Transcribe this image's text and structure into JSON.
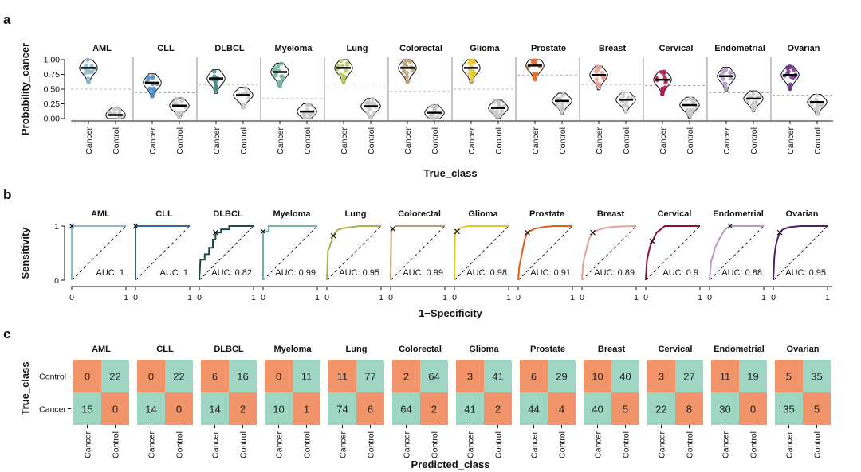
{
  "chart_data": [
    {
      "type": "violin",
      "panel": "a",
      "ylabel": "Probability_cancer",
      "xlabel": "True_class",
      "ylim": [
        0,
        1
      ],
      "yticks": [
        "0.00",
        "0.25",
        "0.50",
        "0.75",
        "1.00"
      ],
      "x_categories": [
        "Cancer",
        "Control"
      ],
      "colors": {
        "AML": "#8ab8d4",
        "CLL": "#4f8ec4",
        "DLBCL": "#4a8a86",
        "Myeloma": "#6fb89c",
        "Lung": "#b6c95c",
        "Colorectal": "#b79e72",
        "Glioma": "#e7c62a",
        "Prostate": "#e27136",
        "Breast": "#e5a29b",
        "Cervical": "#b0164f",
        "Endometrial": "#b49bc2",
        "Ovarian": "#6f338e",
        "control": "#c8c8c8"
      },
      "panels": [
        {
          "name": "AML",
          "cancer_median": 0.86,
          "control_median": 0.06,
          "threshold": 0.5
        },
        {
          "name": "CLL",
          "cancer_median": 0.61,
          "control_median": 0.22,
          "threshold": 0.44
        },
        {
          "name": "DLBCL",
          "cancer_median": 0.68,
          "control_median": 0.4,
          "threshold": 0.58
        },
        {
          "name": "Myeloma",
          "cancer_median": 0.79,
          "control_median": 0.12,
          "threshold": 0.34
        },
        {
          "name": "Lung",
          "cancer_median": 0.86,
          "control_median": 0.21,
          "threshold": 0.52
        },
        {
          "name": "Colorectal",
          "cancer_median": 0.86,
          "control_median": 0.1,
          "threshold": 0.46
        },
        {
          "name": "Glioma",
          "cancer_median": 0.86,
          "control_median": 0.18,
          "threshold": 0.5
        },
        {
          "name": "Prostate",
          "cancer_median": 0.9,
          "control_median": 0.3,
          "threshold": 0.74
        },
        {
          "name": "Breast",
          "cancer_median": 0.74,
          "control_median": 0.32,
          "threshold": 0.58
        },
        {
          "name": "Cervical",
          "cancer_median": 0.66,
          "control_median": 0.23,
          "threshold": 0.56
        },
        {
          "name": "Endometrial",
          "cancer_median": 0.72,
          "control_median": 0.34,
          "threshold": 0.44
        },
        {
          "name": "Ovarian",
          "cancer_median": 0.74,
          "control_median": 0.28,
          "threshold": 0.4
        }
      ]
    },
    {
      "type": "line",
      "panel": "b",
      "xlabel": "1−Specificity",
      "ylabel": "Sensitivity",
      "xlim": [
        0,
        1
      ],
      "ylim": [
        0,
        1
      ],
      "xticks": [
        "0",
        "1"
      ],
      "yticks": [
        "0",
        "1"
      ],
      "panels": [
        {
          "name": "AML",
          "auc_label": "AUC: 1",
          "color": "#8ab8d4",
          "marker": [
            0,
            1
          ],
          "x": [
            0,
            0,
            1
          ],
          "y": [
            0,
            1,
            1
          ]
        },
        {
          "name": "CLL",
          "auc_label": "AUC: 1",
          "color": "#2c6aa6",
          "marker": [
            0,
            1
          ],
          "x": [
            0,
            0,
            1
          ],
          "y": [
            0,
            1,
            1
          ]
        },
        {
          "name": "DLBCL",
          "auc_label": "AUC: 0.82",
          "color": "#1d4b47",
          "marker": [
            0.3,
            0.88
          ],
          "x": [
            0,
            0.02,
            0.1,
            0.1,
            0.18,
            0.18,
            0.25,
            0.25,
            0.3,
            0.3,
            0.4,
            0.4,
            0.55,
            0.55,
            1
          ],
          "y": [
            0,
            0.38,
            0.38,
            0.48,
            0.48,
            0.6,
            0.6,
            0.75,
            0.75,
            0.88,
            0.88,
            0.94,
            0.94,
            1,
            1
          ]
        },
        {
          "name": "Myeloma",
          "auc_label": "AUC: 0.99",
          "color": "#6fb89c",
          "marker": [
            0,
            0.9
          ],
          "x": [
            0,
            0,
            0.1,
            0.1,
            1
          ],
          "y": [
            0,
            0.9,
            0.9,
            1,
            1
          ]
        },
        {
          "name": "Lung",
          "auc_label": "AUC: 0.95",
          "color": "#9fb84a",
          "marker": [
            0.12,
            0.82
          ],
          "x": [
            0,
            0.02,
            0.05,
            0.06,
            0.09,
            0.1,
            0.15,
            0.2,
            0.3,
            0.45,
            0.6,
            1
          ],
          "y": [
            0,
            0.55,
            0.6,
            0.66,
            0.72,
            0.8,
            0.88,
            0.93,
            0.96,
            0.98,
            1,
            1
          ]
        },
        {
          "name": "Colorectal",
          "auc_label": "AUC: 0.99",
          "color": "#b79e72",
          "marker": [
            0.04,
            0.95
          ],
          "x": [
            0,
            0.01,
            0.03,
            0.05,
            0.1,
            1
          ],
          "y": [
            0,
            0.88,
            0.93,
            0.96,
            1,
            1
          ]
        },
        {
          "name": "Glioma",
          "auc_label": "AUC: 0.98",
          "color": "#e7c62a",
          "marker": [
            0.05,
            0.9
          ],
          "x": [
            0,
            0.01,
            0.03,
            0.06,
            0.12,
            0.25,
            1
          ],
          "y": [
            0,
            0.85,
            0.9,
            0.93,
            0.97,
            1,
            1
          ]
        },
        {
          "name": "Prostate",
          "auc_label": "AUC: 0.91",
          "color": "#dd5f1f",
          "marker": [
            0.17,
            0.88
          ],
          "x": [
            0,
            0.02,
            0.05,
            0.08,
            0.1,
            0.12,
            0.15,
            0.2,
            0.3,
            0.45,
            0.65,
            1
          ],
          "y": [
            0,
            0.25,
            0.4,
            0.55,
            0.65,
            0.75,
            0.84,
            0.9,
            0.95,
            0.98,
            1,
            1
          ]
        },
        {
          "name": "Breast",
          "auc_label": "AUC: 0.89",
          "color": "#e5a29b",
          "marker": [
            0.2,
            0.88
          ],
          "x": [
            0,
            0.02,
            0.05,
            0.08,
            0.1,
            0.14,
            0.2,
            0.3,
            0.4,
            0.6,
            1
          ],
          "y": [
            0,
            0.3,
            0.45,
            0.55,
            0.65,
            0.78,
            0.88,
            0.93,
            0.96,
            0.99,
            1
          ]
        },
        {
          "name": "Cervical",
          "auc_label": "AUC: 0.9",
          "color": "#8a1040",
          "marker": [
            0.12,
            0.72
          ],
          "x": [
            0,
            0.02,
            0.05,
            0.08,
            0.12,
            0.16,
            0.2,
            0.28,
            0.35,
            0.5,
            1
          ],
          "y": [
            0,
            0.35,
            0.5,
            0.62,
            0.72,
            0.8,
            0.88,
            0.94,
            1,
            1,
            1
          ]
        },
        {
          "name": "Endometrial",
          "auc_label": "AUC: 0.88",
          "color": "#b49bc2",
          "marker": [
            0.38,
            1
          ],
          "x": [
            0,
            0.03,
            0.08,
            0.1,
            0.15,
            0.2,
            0.25,
            0.3,
            0.38,
            1
          ],
          "y": [
            0,
            0.35,
            0.5,
            0.6,
            0.7,
            0.8,
            0.88,
            0.95,
            1,
            1
          ]
        },
        {
          "name": "Ovarian",
          "auc_label": "AUC: 0.95",
          "color": "#4a1f70",
          "marker": [
            0.12,
            0.88
          ],
          "x": [
            0,
            0.02,
            0.04,
            0.06,
            0.09,
            0.12,
            0.18,
            0.3,
            0.5,
            1
          ],
          "y": [
            0,
            0.45,
            0.6,
            0.7,
            0.8,
            0.88,
            0.94,
            0.98,
            1,
            1
          ]
        }
      ]
    },
    {
      "type": "heatmap",
      "panel": "c",
      "xlabel": "Predicted_class",
      "ylabel": "True_class",
      "rows": [
        "Control",
        "Cancer"
      ],
      "cols": [
        "Cancer",
        "Control"
      ],
      "colors": {
        "correct": "#9fd6c1",
        "wrong": "#f29469"
      },
      "panels": [
        {
          "name": "AML",
          "matrix": [
            [
              0,
              22
            ],
            [
              15,
              0
            ]
          ]
        },
        {
          "name": "CLL",
          "matrix": [
            [
              0,
              22
            ],
            [
              14,
              0
            ]
          ]
        },
        {
          "name": "DLBCL",
          "matrix": [
            [
              6,
              16
            ],
            [
              14,
              2
            ]
          ]
        },
        {
          "name": "Myeloma",
          "matrix": [
            [
              0,
              11
            ],
            [
              10,
              1
            ]
          ]
        },
        {
          "name": "Lung",
          "matrix": [
            [
              11,
              77
            ],
            [
              74,
              6
            ]
          ]
        },
        {
          "name": "Colorectal",
          "matrix": [
            [
              2,
              64
            ],
            [
              64,
              2
            ]
          ]
        },
        {
          "name": "Glioma",
          "matrix": [
            [
              3,
              41
            ],
            [
              41,
              2
            ]
          ]
        },
        {
          "name": "Prostate",
          "matrix": [
            [
              6,
              29
            ],
            [
              44,
              4
            ]
          ]
        },
        {
          "name": "Breast",
          "matrix": [
            [
              10,
              40
            ],
            [
              40,
              5
            ]
          ]
        },
        {
          "name": "Cervical",
          "matrix": [
            [
              3,
              27
            ],
            [
              22,
              8
            ]
          ]
        },
        {
          "name": "Endometrial",
          "matrix": [
            [
              11,
              19
            ],
            [
              30,
              0
            ]
          ]
        },
        {
          "name": "Ovarian",
          "matrix": [
            [
              5,
              35
            ],
            [
              35,
              5
            ]
          ]
        }
      ]
    }
  ],
  "panel_letters": [
    "a",
    "b",
    "c"
  ]
}
